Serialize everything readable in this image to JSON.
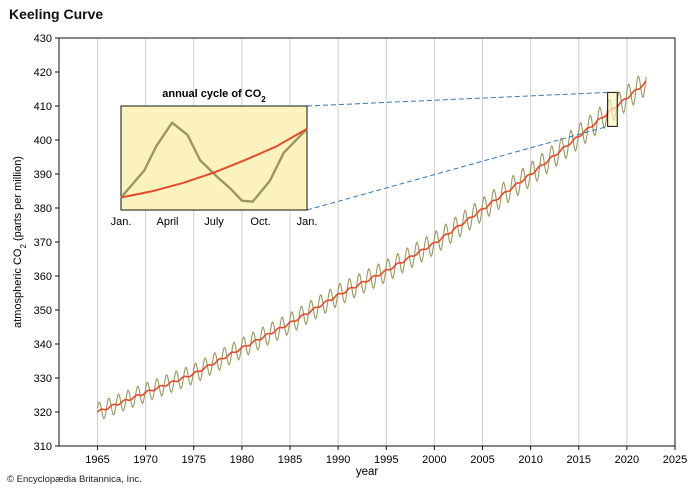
{
  "page": {
    "title": "Keeling Curve",
    "credit": "© Encyclopædia Britannica, Inc."
  },
  "colors": {
    "monthly_line": "#9a9760",
    "trend_line": "#e44b2a",
    "inset_background": "#fbf2bd",
    "dashed_connector": "#3377b8",
    "gridline": "#cfcfcf"
  },
  "chart_data": [
    {
      "type": "line",
      "title": "Keeling Curve",
      "xlabel": "year",
      "ylabel": "atmospheric CO",
      "ylabel_sub": "2",
      "ylabel_suffix": " (parts per million)",
      "xlim": [
        1961,
        2025
      ],
      "ylim": [
        310,
        430
      ],
      "x_ticks": [
        1965,
        1970,
        1975,
        1980,
        1985,
        1990,
        1995,
        2000,
        2005,
        2010,
        2015,
        2020,
        2025
      ],
      "y_ticks": [
        310,
        320,
        330,
        340,
        350,
        360,
        370,
        380,
        390,
        400,
        410,
        420,
        430
      ],
      "grid": "vertical",
      "trend_anchor_points": {
        "x": [
          1965,
          1970,
          1975,
          1980,
          1985,
          1990,
          1995,
          2000,
          2005,
          2010,
          2015,
          2020,
          2022
        ],
        "y": [
          320,
          325.7,
          331.2,
          338.8,
          346.1,
          354.4,
          361.5,
          369.6,
          379.6,
          389.9,
          401.1,
          412.4,
          417
        ]
      },
      "seasonal_amplitude_ppm": 3.2,
      "series": [
        {
          "role": "monthly",
          "color": "#9a9760"
        },
        {
          "role": "trend",
          "color": "#e44b2a"
        }
      ],
      "highlight_box": {
        "x": [
          2018,
          2019
        ],
        "y": [
          404,
          414
        ]
      }
    },
    {
      "type": "line",
      "title": "annual cycle of CO",
      "title_sub": "2",
      "x_categories": [
        "Jan.",
        "April",
        "July",
        "Oct.",
        "Jan."
      ],
      "x_range_months": [
        0,
        12
      ],
      "series": [
        {
          "role": "monthly",
          "x": [
            0,
            1.5,
            2.3,
            3.3,
            4.3,
            5.1,
            6.2,
            7.1,
            7.8,
            8.5,
            9.6,
            10.5,
            12
          ],
          "y": [
            0.12,
            0.38,
            0.62,
            0.84,
            0.72,
            0.48,
            0.32,
            0.2,
            0.09,
            0.08,
            0.28,
            0.55,
            0.78
          ]
        },
        {
          "role": "trend",
          "x": [
            0,
            2,
            4,
            6,
            8,
            10,
            12
          ],
          "y": [
            0.12,
            0.18,
            0.26,
            0.36,
            0.48,
            0.61,
            0.78
          ]
        }
      ]
    }
  ]
}
